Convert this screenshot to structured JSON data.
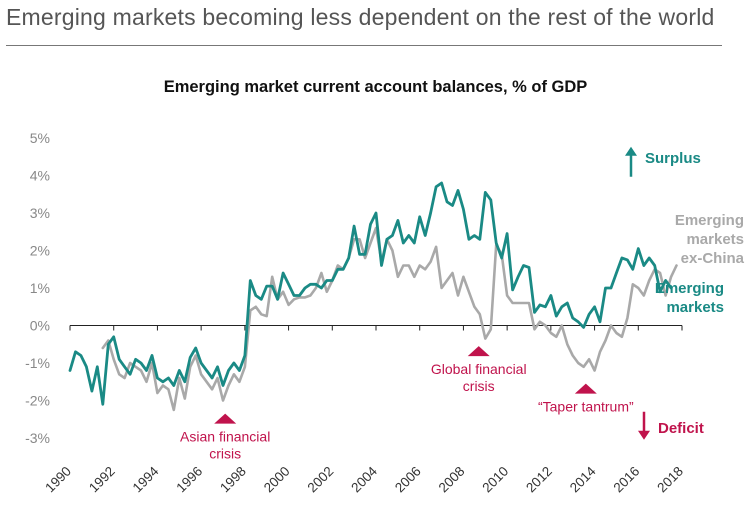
{
  "page": {
    "title": "Emerging markets becoming less dependent on the rest of the world"
  },
  "colors": {
    "em": "#1a8a85",
    "exchina": "#a9a9a9",
    "annotation": "#c0134c",
    "axis": "#222222",
    "tick_text": "#888888"
  },
  "chart_data": {
    "type": "line",
    "title": "Emerging market current account balances, % of GDP",
    "xlabel": "",
    "ylabel": "",
    "xlim": [
      1990,
      2018
    ],
    "ylim": [
      -3,
      5
    ],
    "y_ticks": [
      "-3%",
      "-2%",
      "-1%",
      "0%",
      "1%",
      "2%",
      "3%",
      "4%",
      "5%"
    ],
    "y_tick_values": [
      -3,
      -2,
      -1,
      0,
      1,
      2,
      3,
      4,
      5
    ],
    "x_ticks": [
      "1990",
      "1992",
      "1994",
      "1996",
      "1998",
      "2000",
      "2002",
      "2004",
      "2006",
      "2008",
      "2010",
      "2012",
      "2014",
      "2016",
      "2018"
    ],
    "x_tick_values": [
      1990,
      1992,
      1994,
      1996,
      1998,
      2000,
      2002,
      2004,
      2006,
      2008,
      2010,
      2012,
      2014,
      2016,
      2018
    ],
    "series": [
      {
        "name": "Emerging markets ex-China",
        "label_lines": [
          "Emerging",
          "markets",
          "ex-China"
        ],
        "color": "#a9a9a9",
        "points": [
          [
            1991.5,
            -0.6
          ],
          [
            1991.75,
            -0.4
          ],
          [
            1992,
            -0.9
          ],
          [
            1992.25,
            -1.3
          ],
          [
            1992.5,
            -1.4
          ],
          [
            1992.75,
            -1.0
          ],
          [
            1993,
            -1.1
          ],
          [
            1993.25,
            -1.2
          ],
          [
            1993.5,
            -1.5
          ],
          [
            1993.75,
            -1.0
          ],
          [
            1994,
            -1.8
          ],
          [
            1994.25,
            -1.6
          ],
          [
            1994.5,
            -1.7
          ],
          [
            1994.75,
            -2.25
          ],
          [
            1995,
            -1.4
          ],
          [
            1995.25,
            -1.95
          ],
          [
            1995.5,
            -1.1
          ],
          [
            1995.75,
            -0.8
          ],
          [
            1996,
            -1.3
          ],
          [
            1996.25,
            -1.5
          ],
          [
            1996.5,
            -1.7
          ],
          [
            1996.75,
            -1.4
          ],
          [
            1997,
            -2.0
          ],
          [
            1997.25,
            -1.6
          ],
          [
            1997.5,
            -1.3
          ],
          [
            1997.75,
            -1.5
          ],
          [
            1998,
            -1.1
          ],
          [
            1998.25,
            0.4
          ],
          [
            1998.5,
            0.5
          ],
          [
            1998.75,
            0.3
          ],
          [
            1999,
            0.25
          ],
          [
            1999.25,
            1.3
          ],
          [
            1999.5,
            0.7
          ],
          [
            1999.75,
            0.9
          ],
          [
            2000,
            0.55
          ],
          [
            2000.25,
            0.7
          ],
          [
            2000.5,
            0.75
          ],
          [
            2000.75,
            0.75
          ],
          [
            2001,
            0.8
          ],
          [
            2001.25,
            1.0
          ],
          [
            2001.5,
            1.4
          ],
          [
            2001.75,
            0.9
          ],
          [
            2002,
            1.2
          ],
          [
            2002.25,
            1.6
          ],
          [
            2002.5,
            1.5
          ],
          [
            2002.75,
            1.8
          ],
          [
            2003,
            2.3
          ],
          [
            2003.25,
            2.3
          ],
          [
            2003.5,
            1.8
          ],
          [
            2003.75,
            2.2
          ],
          [
            2004,
            2.6
          ],
          [
            2004.25,
            1.7
          ],
          [
            2004.5,
            2.3
          ],
          [
            2004.75,
            2.0
          ],
          [
            2005,
            1.3
          ],
          [
            2005.25,
            1.6
          ],
          [
            2005.5,
            1.6
          ],
          [
            2005.75,
            1.3
          ],
          [
            2006,
            1.6
          ],
          [
            2006.25,
            1.5
          ],
          [
            2006.5,
            1.7
          ],
          [
            2006.75,
            2.1
          ],
          [
            2007,
            1.0
          ],
          [
            2007.25,
            1.2
          ],
          [
            2007.5,
            1.4
          ],
          [
            2007.75,
            0.8
          ],
          [
            2008,
            1.3
          ],
          [
            2008.25,
            0.9
          ],
          [
            2008.5,
            0.5
          ],
          [
            2008.75,
            0.3
          ],
          [
            2009,
            -0.35
          ],
          [
            2009.25,
            -0.1
          ],
          [
            2009.5,
            2.15
          ],
          [
            2009.75,
            1.9
          ],
          [
            2010,
            0.8
          ],
          [
            2010.25,
            0.6
          ],
          [
            2010.5,
            0.6
          ],
          [
            2010.75,
            0.6
          ],
          [
            2011,
            0.6
          ],
          [
            2011.25,
            -0.1
          ],
          [
            2011.5,
            0.1
          ],
          [
            2011.75,
            0.0
          ],
          [
            2012,
            -0.2
          ],
          [
            2012.25,
            -0.3
          ],
          [
            2012.5,
            0.0
          ],
          [
            2012.75,
            -0.5
          ],
          [
            2013,
            -0.8
          ],
          [
            2013.25,
            -1.0
          ],
          [
            2013.5,
            -1.1
          ],
          [
            2013.75,
            -0.9
          ],
          [
            2014,
            -1.2
          ],
          [
            2014.25,
            -0.7
          ],
          [
            2014.5,
            -0.4
          ],
          [
            2014.75,
            0.0
          ],
          [
            2015,
            -0.2
          ],
          [
            2015.25,
            -0.3
          ],
          [
            2015.5,
            0.2
          ],
          [
            2015.75,
            1.1
          ],
          [
            2016,
            1.0
          ],
          [
            2016.25,
            0.8
          ],
          [
            2016.5,
            1.2
          ],
          [
            2016.75,
            1.5
          ],
          [
            2017,
            1.4
          ],
          [
            2017.25,
            0.8
          ],
          [
            2017.5,
            1.3
          ],
          [
            2017.75,
            1.6
          ]
        ]
      },
      {
        "name": "Emerging markets",
        "label_lines": [
          "Emerging",
          "markets"
        ],
        "color": "#1a8a85",
        "points": [
          [
            1990,
            -1.2
          ],
          [
            1990.25,
            -0.7
          ],
          [
            1990.5,
            -0.8
          ],
          [
            1990.75,
            -1.1
          ],
          [
            1991,
            -1.75
          ],
          [
            1991.25,
            -1.1
          ],
          [
            1991.5,
            -2.1
          ],
          [
            1991.75,
            -0.5
          ],
          [
            1992,
            -0.3
          ],
          [
            1992.25,
            -0.9
          ],
          [
            1992.5,
            -1.1
          ],
          [
            1992.75,
            -1.3
          ],
          [
            1993,
            -0.9
          ],
          [
            1993.25,
            -1.0
          ],
          [
            1993.5,
            -1.2
          ],
          [
            1993.75,
            -0.8
          ],
          [
            1994,
            -1.4
          ],
          [
            1994.25,
            -1.5
          ],
          [
            1994.5,
            -1.4
          ],
          [
            1994.75,
            -1.6
          ],
          [
            1995,
            -1.2
          ],
          [
            1995.25,
            -1.5
          ],
          [
            1995.5,
            -0.85
          ],
          [
            1995.75,
            -0.6
          ],
          [
            1996,
            -1.0
          ],
          [
            1996.25,
            -1.2
          ],
          [
            1996.5,
            -1.4
          ],
          [
            1996.75,
            -1.1
          ],
          [
            1997,
            -1.6
          ],
          [
            1997.25,
            -1.2
          ],
          [
            1997.5,
            -1.0
          ],
          [
            1997.75,
            -1.2
          ],
          [
            1998,
            -0.8
          ],
          [
            1998.25,
            1.2
          ],
          [
            1998.5,
            0.8
          ],
          [
            1998.75,
            0.7
          ],
          [
            1999,
            1.05
          ],
          [
            1999.25,
            1.05
          ],
          [
            1999.5,
            0.7
          ],
          [
            1999.75,
            1.4
          ],
          [
            2000,
            1.1
          ],
          [
            2000.25,
            0.8
          ],
          [
            2000.5,
            0.8
          ],
          [
            2000.75,
            1.0
          ],
          [
            2001,
            1.1
          ],
          [
            2001.25,
            1.1
          ],
          [
            2001.5,
            1.0
          ],
          [
            2001.75,
            1.2
          ],
          [
            2002,
            1.2
          ],
          [
            2002.25,
            1.5
          ],
          [
            2002.5,
            1.5
          ],
          [
            2002.75,
            1.8
          ],
          [
            2003,
            2.65
          ],
          [
            2003.25,
            1.9
          ],
          [
            2003.5,
            1.9
          ],
          [
            2003.75,
            2.7
          ],
          [
            2004,
            3.0
          ],
          [
            2004.25,
            1.6
          ],
          [
            2004.5,
            2.3
          ],
          [
            2004.75,
            2.4
          ],
          [
            2005,
            2.8
          ],
          [
            2005.25,
            2.2
          ],
          [
            2005.5,
            2.4
          ],
          [
            2005.75,
            2.2
          ],
          [
            2006,
            2.9
          ],
          [
            2006.25,
            2.4
          ],
          [
            2006.5,
            3.0
          ],
          [
            2006.75,
            3.7
          ],
          [
            2007,
            3.8
          ],
          [
            2007.25,
            3.3
          ],
          [
            2007.5,
            3.2
          ],
          [
            2007.75,
            3.6
          ],
          [
            2008,
            3.1
          ],
          [
            2008.25,
            2.3
          ],
          [
            2008.5,
            2.4
          ],
          [
            2008.75,
            2.3
          ],
          [
            2009,
            3.55
          ],
          [
            2009.25,
            3.35
          ],
          [
            2009.5,
            2.2
          ],
          [
            2009.75,
            1.8
          ],
          [
            2010,
            2.45
          ],
          [
            2010.25,
            0.95
          ],
          [
            2010.5,
            1.3
          ],
          [
            2010.75,
            1.6
          ],
          [
            2011,
            1.55
          ],
          [
            2011.25,
            0.35
          ],
          [
            2011.5,
            0.55
          ],
          [
            2011.75,
            0.5
          ],
          [
            2012,
            0.8
          ],
          [
            2012.25,
            0.25
          ],
          [
            2012.5,
            0.5
          ],
          [
            2012.75,
            0.6
          ],
          [
            2013,
            0.2
          ],
          [
            2013.25,
            0.1
          ],
          [
            2013.5,
            -0.05
          ],
          [
            2013.75,
            0.3
          ],
          [
            2014,
            0.5
          ],
          [
            2014.25,
            0.1
          ],
          [
            2014.5,
            1.0
          ],
          [
            2014.75,
            1.0
          ],
          [
            2015,
            1.4
          ],
          [
            2015.25,
            1.8
          ],
          [
            2015.5,
            1.75
          ],
          [
            2015.75,
            1.5
          ],
          [
            2016,
            2.05
          ],
          [
            2016.25,
            1.6
          ],
          [
            2016.5,
            1.8
          ],
          [
            2016.75,
            1.6
          ],
          [
            2017,
            0.9
          ],
          [
            2017.25,
            1.2
          ],
          [
            2017.5,
            1.0
          ]
        ]
      }
    ],
    "annotations": [
      {
        "label_lines": [
          "Asian financial",
          "crisis"
        ],
        "x": 1997.1,
        "y": -2.35
      },
      {
        "label_lines": [
          "Global financial",
          "crisis"
        ],
        "x": 2008.7,
        "y": -0.55
      },
      {
        "label_lines": [
          "“Taper tantrum”"
        ],
        "x": 2013.6,
        "y": -1.55
      }
    ],
    "direction_labels": {
      "surplus": "Surplus",
      "deficit": "Deficit"
    }
  }
}
